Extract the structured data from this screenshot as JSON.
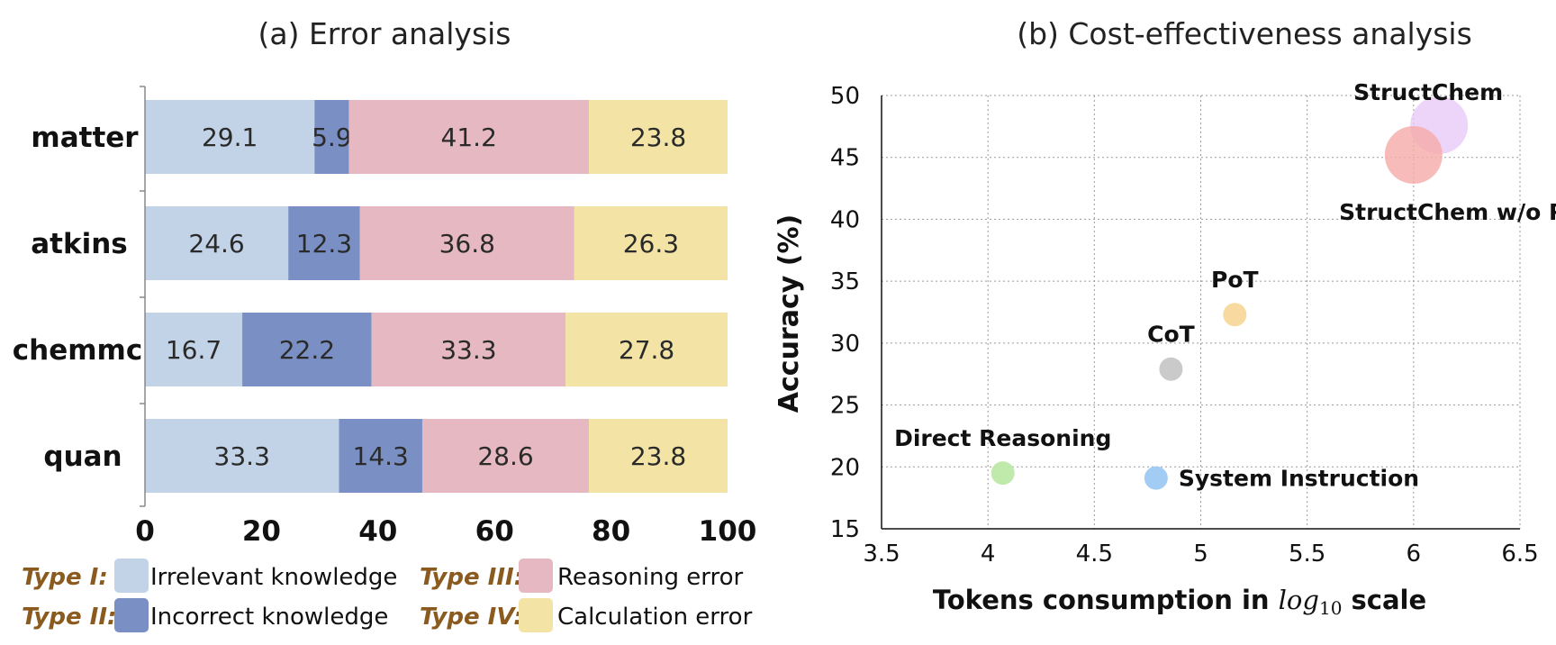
{
  "chart_data": [
    {
      "type": "bar",
      "orientation": "horizontal",
      "stacked": true,
      "title": "(a) Error analysis",
      "categories": [
        "matter",
        "atkins",
        "chemmc",
        "quan"
      ],
      "series": [
        {
          "name": "Irrelevant knowledge",
          "type_label": "Type I:",
          "color": "#c2d3e8",
          "values": [
            29.1,
            24.6,
            16.7,
            33.3
          ],
          "labels": [
            "29.1",
            "24.6",
            "16.7",
            "33.3"
          ]
        },
        {
          "name": "Incorrect knowledge",
          "type_label": "Type II:",
          "color": "#7a90c4",
          "values": [
            5.9,
            12.3,
            22.2,
            14.3
          ],
          "labels": [
            "5.9",
            "12.3",
            "22.2",
            "14.3"
          ]
        },
        {
          "name": "Reasoning error",
          "type_label": "Type III:",
          "color": "#e6b9c2",
          "values": [
            41.2,
            36.8,
            33.3,
            28.6
          ],
          "labels": [
            "41.2",
            "36.8",
            "33.3",
            "28.6"
          ]
        },
        {
          "name": "Calculation error",
          "type_label": "Type IV:",
          "color": "#f3e4a6",
          "values": [
            23.8,
            26.3,
            27.8,
            23.8
          ],
          "labels": [
            "23.8",
            "26.3",
            "27.8",
            "23.8"
          ]
        }
      ],
      "xlim": [
        0,
        100
      ],
      "xticks": [
        0,
        20,
        40,
        60,
        80,
        100
      ],
      "xtick_labels": [
        "0",
        "20",
        "40",
        "60",
        "80",
        "100"
      ],
      "legend_placement": "bottom",
      "type_label_color": "#8a5a1e",
      "grid": false
    },
    {
      "type": "scatter",
      "title": "(b) Cost-effectiveness analysis",
      "xlabel_prefix": "Tokens consumption in ",
      "xlabel_math": "log",
      "xlabel_sub": "10",
      "xlabel_suffix": " scale",
      "ylabel": "Accuracy (%)",
      "xlim": [
        3.5,
        6.5
      ],
      "ylim": [
        15,
        50
      ],
      "xticks": [
        3.5,
        4,
        4.5,
        5,
        5.5,
        6,
        6.5
      ],
      "xtick_labels": [
        "3.5",
        "4",
        "4.5",
        "5",
        "5.5",
        "6",
        "6.5"
      ],
      "yticks": [
        15,
        20,
        25,
        30,
        35,
        40,
        45,
        50
      ],
      "ytick_labels": [
        "15",
        "20",
        "25",
        "30",
        "35",
        "40",
        "45",
        "50"
      ],
      "grid": true,
      "points": [
        {
          "label": "Direct Reasoning",
          "x": 4.07,
          "y": 19.5,
          "color": "#bde9a8",
          "opacity": 0.95,
          "size": "small",
          "label_pos": "above"
        },
        {
          "label": "System Instruction",
          "x": 4.79,
          "y": 19.1,
          "color": "#9ec9f3",
          "opacity": 0.95,
          "size": "small",
          "label_pos": "right"
        },
        {
          "label": "CoT",
          "x": 4.86,
          "y": 27.9,
          "color": "#c7c7c7",
          "opacity": 0.95,
          "size": "small",
          "label_pos": "above"
        },
        {
          "label": "PoT",
          "x": 5.16,
          "y": 32.3,
          "color": "#f8d79a",
          "opacity": 0.95,
          "size": "small",
          "label_pos": "above"
        },
        {
          "label": "StructChem",
          "x": 6.12,
          "y": 47.6,
          "color": "#e7c6f7",
          "opacity": 0.75,
          "size": "large",
          "label_pos": "above-left"
        },
        {
          "label": "StructChem w/o PoT",
          "x": 6.0,
          "y": 45.2,
          "color": "#f5aaa7",
          "opacity": 0.8,
          "size": "large",
          "label_pos": "below"
        }
      ]
    }
  ]
}
